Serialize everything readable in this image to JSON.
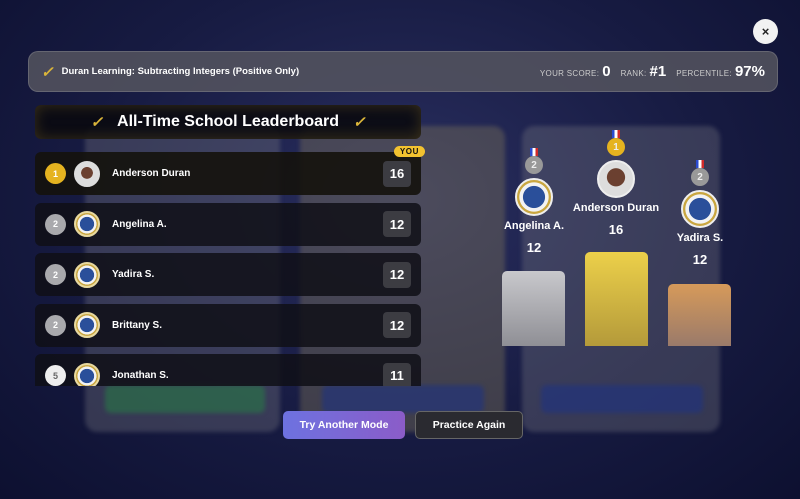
{
  "header": {
    "title": "Duran Learning: Subtracting Integers (Positive Only)",
    "score_label": "YOUR SCORE:",
    "score": "0",
    "rank_label": "RANK:",
    "rank": "#1",
    "percentile_label": "PERCENTILE:",
    "percentile": "97%"
  },
  "close_label": "×",
  "leaderboard": {
    "title": "All-Time School Leaderboard",
    "you_badge": "YOU",
    "rows": [
      {
        "rank": "1",
        "name": "Anderson Duran",
        "score": "16"
      },
      {
        "rank": "2",
        "name": "Angelina A.",
        "score": "12"
      },
      {
        "rank": "2",
        "name": "Yadira S.",
        "score": "12"
      },
      {
        "rank": "2",
        "name": "Brittany S.",
        "score": "12"
      },
      {
        "rank": "5",
        "name": "Jonathan S.",
        "score": "11"
      }
    ]
  },
  "podium": {
    "first": {
      "medal": "1",
      "name": "Anderson Duran",
      "score": "16"
    },
    "second": {
      "medal": "2",
      "name": "Angelina A.",
      "score": "12"
    },
    "third": {
      "medal": "2",
      "name": "Yadira S.",
      "score": "12"
    }
  },
  "buttons": {
    "try_another": "Try Another Mode",
    "practice_again": "Practice Again"
  },
  "colors": {
    "gold": "#e5b320",
    "silver": "#a9a9ad",
    "bronze": "#d69a5a",
    "accent": "#7a6fe0"
  }
}
